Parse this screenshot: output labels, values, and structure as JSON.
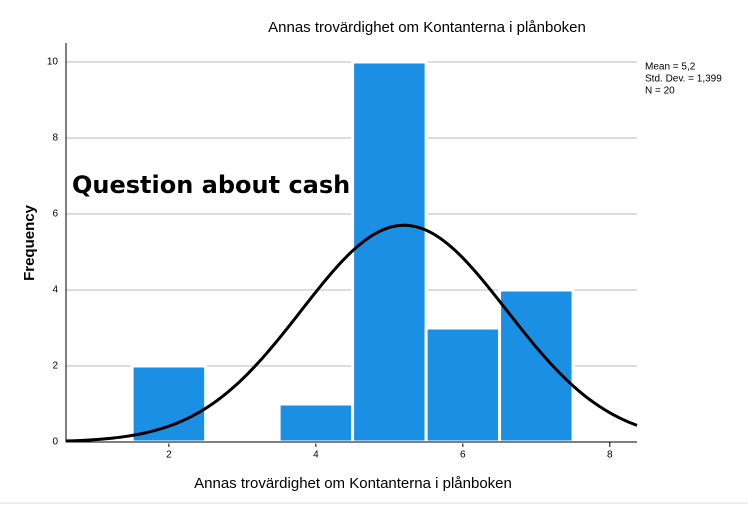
{
  "chart_data": {
    "type": "histogram",
    "title": "Annas trovärdighet om Kontanterna i plånboken",
    "xlabel": "Annas trovärdighet om Kontanterna i plånboken",
    "ylabel": "Frequency",
    "annotation": "Question about cash",
    "bins": [
      1.5,
      2.5,
      3.5,
      4.5,
      5.5,
      6.5,
      7.5
    ],
    "counts": [
      2,
      0,
      1,
      10,
      3,
      4
    ],
    "color": "#1a8fe3",
    "stats": [
      {
        "value": 5.2,
        "label": "Mean = 5,2"
      },
      {
        "value": 1.399,
        "label": "Std. Dev. = 1,399"
      },
      {
        "value": 20,
        "label": "N = 20"
      }
    ],
    "normal_curve": true,
    "xlim": [
      0.6,
      8.37
    ],
    "ylim": [
      0,
      10.5
    ],
    "xticks": [
      2,
      4,
      6,
      8
    ],
    "yticks": [
      0,
      2,
      4,
      6,
      8,
      10
    ],
    "grid": true
  }
}
